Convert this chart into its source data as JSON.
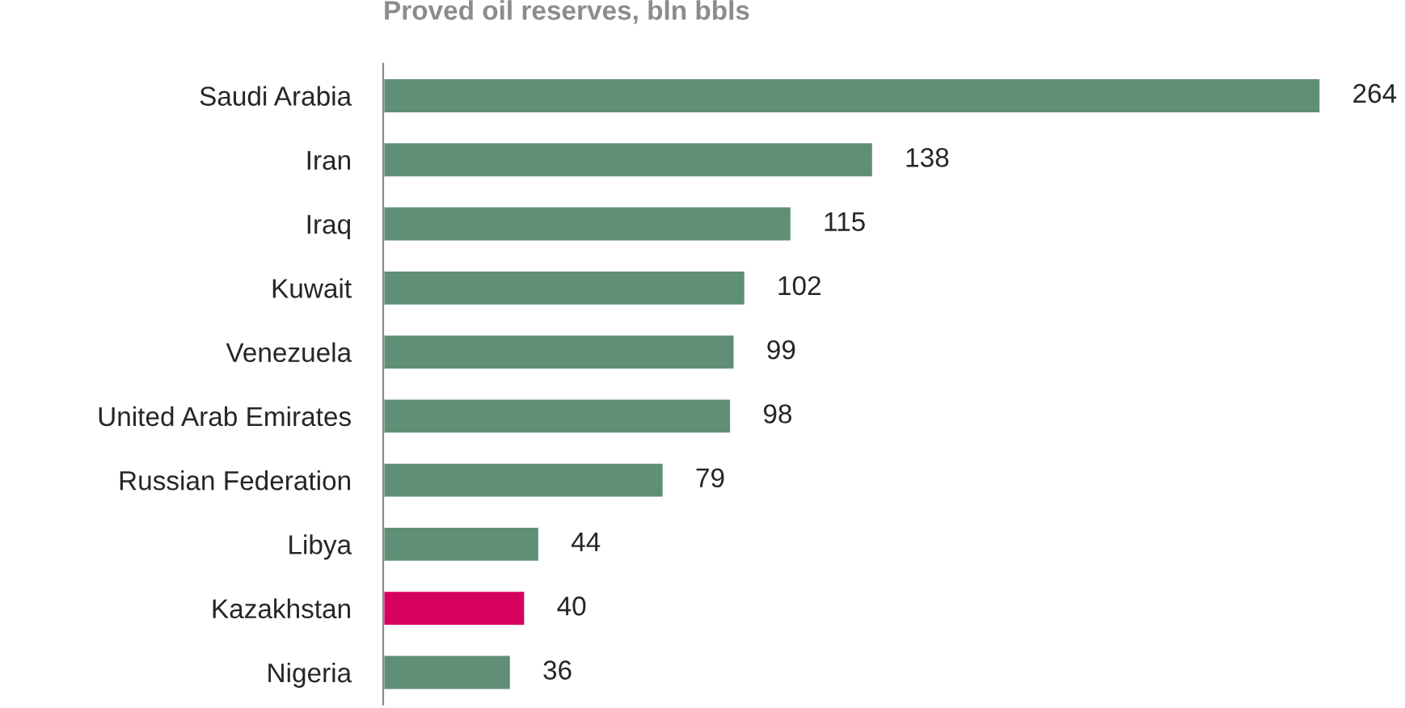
{
  "chart_data": {
    "type": "bar",
    "orientation": "horizontal",
    "title": "Proved oil reserves, bln bbls",
    "categories": [
      "Saudi Arabia",
      "Iran",
      "Iraq",
      "Kuwait",
      "Venezuela",
      "United Arab Emirates",
      "Russian Federation",
      "Libya",
      "Kazakhstan",
      "Nigeria"
    ],
    "values": [
      264,
      138,
      115,
      102,
      99,
      98,
      79,
      44,
      40,
      36
    ],
    "colors": [
      "#5f8f76",
      "#5f8f76",
      "#5f8f76",
      "#5f8f76",
      "#5f8f76",
      "#5f8f76",
      "#5f8f76",
      "#5f8f76",
      "#d6005f",
      "#5f8f76"
    ],
    "data_labels": true,
    "grid": false,
    "legend": false
  }
}
